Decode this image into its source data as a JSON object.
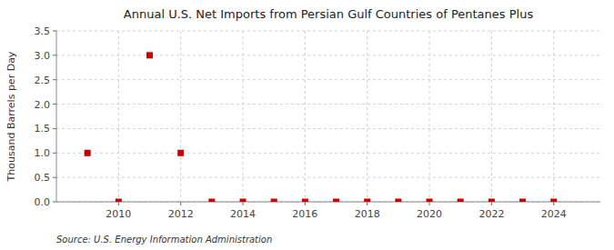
{
  "chart_data": {
    "type": "scatter",
    "title": "Annual U.S. Net Imports from Persian Gulf Countries of Pentanes Plus",
    "ylabel": "Thousand Barrels per Day",
    "annotations": [
      "Source: U.S. Energy Information Administration"
    ],
    "x": [
      2009,
      2010,
      2011,
      2012,
      2013,
      2014,
      2015,
      2016,
      2017,
      2018,
      2019,
      2020,
      2021,
      2022,
      2023,
      2024
    ],
    "values": [
      1.0,
      0.0,
      3.0,
      1.0,
      0.0,
      0.0,
      0.0,
      0.0,
      0.0,
      0.0,
      0.0,
      0.0,
      0.0,
      0.0,
      0.0,
      0.0
    ],
    "color": "#cc0000",
    "marker": "square",
    "xlim": [
      2008.0,
      2025.5
    ],
    "xticks": [
      2010,
      2012,
      2014,
      2016,
      2018,
      2020,
      2022,
      2024
    ],
    "ylim": [
      0,
      3.5
    ],
    "yticks": [
      {
        "value": 0,
        "label": "0.0"
      },
      0.5,
      {
        "value": 1,
        "label": "1.0"
      },
      1.5,
      {
        "value": 2,
        "label": "2.0"
      },
      2.5,
      {
        "value": 3,
        "label": "3.0"
      },
      3.5
    ],
    "grid": true
  }
}
